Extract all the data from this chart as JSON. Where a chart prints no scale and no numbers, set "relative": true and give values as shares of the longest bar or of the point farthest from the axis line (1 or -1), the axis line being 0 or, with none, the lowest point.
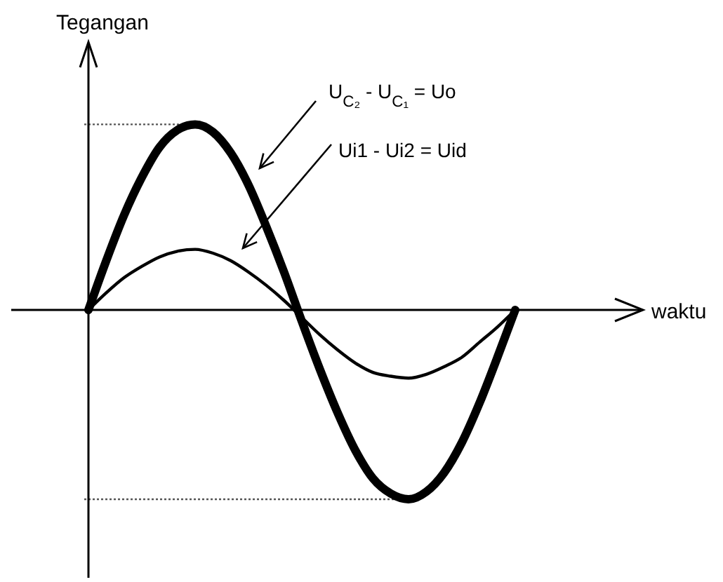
{
  "chart_data": {
    "type": "line",
    "relative": true,
    "ylabel": "Tegangan",
    "line_style": "solid",
    "categories": [
      null,
      null,
      null,
      null,
      null,
      null,
      null,
      null,
      null,
      null,
      null,
      null,
      null,
      null,
      null,
      null,
      null,
      null,
      null,
      null,
      null,
      null,
      null,
      null,
      null
    ],
    "series": [
      {
        "color": "#000000",
        "values": [
          0,
          0.26,
          0.5,
          0.7,
          0.86,
          0.95,
          0.98,
          0.94,
          0.83,
          0.66,
          0.44,
          0.2,
          -0.06,
          -0.31,
          -0.54,
          -0.74,
          -0.89,
          -0.97,
          -1,
          -0.96,
          -0.86,
          -0.7,
          -0.49,
          -0.25,
          0
        ]
      },
      {
        "color": "#000000",
        "values": [
          0,
          0.09,
          0.17,
          0.23,
          0.28,
          0.31,
          0.32,
          0.3,
          0.26,
          0.2,
          0.13,
          0.05,
          -0.04,
          -0.13,
          -0.21,
          -0.28,
          -0.33,
          -0.35,
          -0.36,
          -0.34,
          -0.3,
          -0.25,
          -0.17,
          -0.09,
          0
        ]
      }
    ],
    "annotations": [
      "U$_{C₂}$ - U$_{C₁}$ = Uo",
      "Ui1 - Ui2 = Uid",
      "waktu"
    ],
    "ref_lines": [
      {
        "axis": "y",
        "value": 0.98,
        "line_style": "dotted",
        "color": "#555555"
      },
      {
        "axis": "y",
        "value": -1,
        "line_style": "dotted",
        "color": "#555555"
      }
    ]
  }
}
